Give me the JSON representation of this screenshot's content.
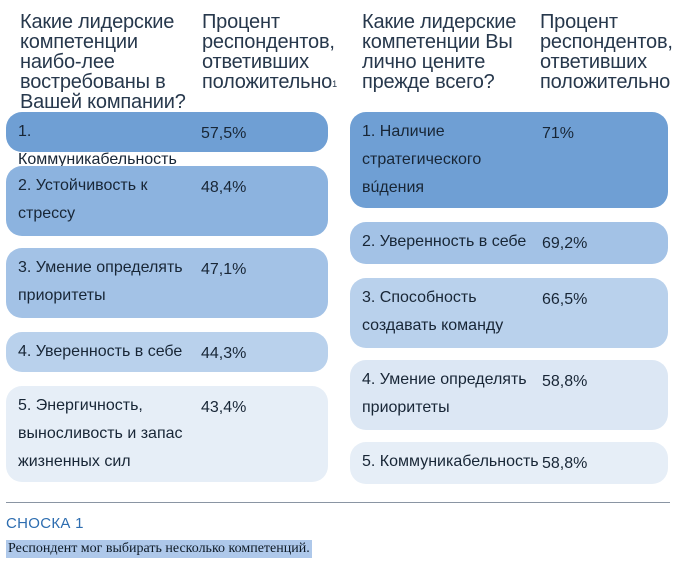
{
  "left": {
    "question": "Какие лидерские компетенции наибо-лее востребованы в Вашей компании?",
    "percent_header": "Процент респондентов, ответивших положительно",
    "footnote_mark": "1",
    "items": [
      {
        "label": "1. Коммуникабельность",
        "value": "57,5%",
        "color": "#6f9fd4"
      },
      {
        "label": "2. Устойчивость к стрессу",
        "value": "48,4%",
        "color": "#8cb3df"
      },
      {
        "label": "3. Умение определять приоритеты",
        "value": "47,1%",
        "color": "#a3c2e6"
      },
      {
        "label": "4. Уверенность в себе",
        "value": "44,3%",
        "color": "#b9d1ec"
      },
      {
        "label": "5. Энергичность, выносливость и запас жизненных сил",
        "value": "43,4%",
        "color": "#e6eef7"
      }
    ]
  },
  "right": {
    "question": "Какие лидерские компетенции Вы лично цените прежде всего?",
    "percent_header": "Процент респондентов, ответивших положительно",
    "items": [
      {
        "label": "1. Наличие стратегического вúдения",
        "value": "71%",
        "color": "#6f9fd4"
      },
      {
        "label": "2. Уверенность в себе",
        "value": "69,2%",
        "color": "#a3c2e6"
      },
      {
        "label": "3. Способность создавать команду",
        "value": "66,5%",
        "color": "#b9d1ec"
      },
      {
        "label": "4. Умение определять приоритеты",
        "value": "58,8%",
        "color": "#dce7f4"
      },
      {
        "label": "5. Коммуникабельность",
        "value": "58,8%",
        "color": "#e6eef7"
      }
    ]
  },
  "footnote": {
    "title": "СНОСКА 1",
    "text": "Респондент мог выбирать несколько компетенций."
  }
}
